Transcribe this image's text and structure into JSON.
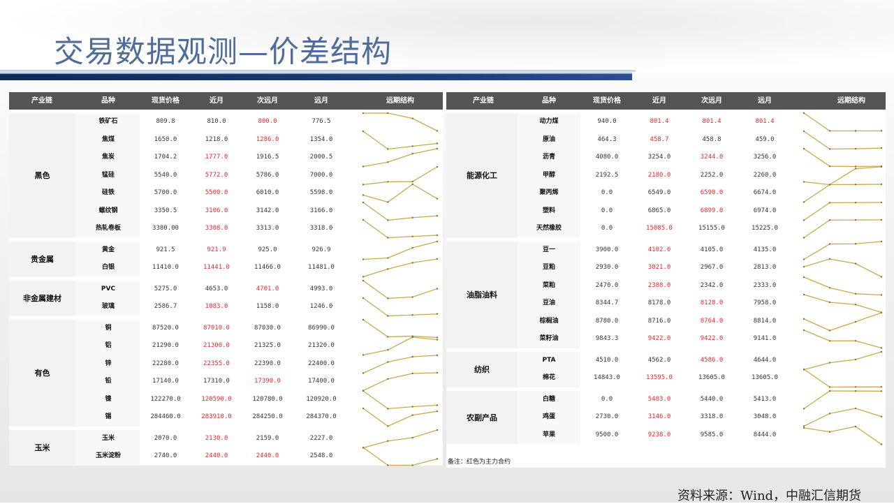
{
  "title": "交易数据观测—价差结构",
  "headers": [
    "产业链",
    "品种",
    "现货价格",
    "近月",
    "次远月",
    "远月",
    "远期结构"
  ],
  "colors": {
    "header_bg": "#555555",
    "main_contract": "#e8282e",
    "sparkline": "#c9a94a",
    "title": "#4f6d99"
  },
  "left": [
    {
      "group": "黑色",
      "rows": [
        [
          "铁矿石",
          "809.8",
          "810.0",
          "800.0",
          "776.5",
          [
            2
          ]
        ],
        [
          "焦煤",
          "1650.0",
          "1218.0",
          "1286.0",
          "1354.0",
          [
            2
          ]
        ],
        [
          "焦炭",
          "1704.2",
          "1777.0",
          "1916.5",
          "2000.5",
          [
            1
          ]
        ],
        [
          "锰硅",
          "5540.0",
          "5772.0",
          "5786.0",
          "7000.0",
          [
            1
          ]
        ],
        [
          "硅铁",
          "5700.0",
          "5500.0",
          "6010.0",
          "5598.0",
          [
            1
          ]
        ],
        [
          "螺纹钢",
          "3350.5",
          "3106.0",
          "3142.0",
          "3166.0",
          [
            1
          ]
        ],
        [
          "热轧卷板",
          "3380.00",
          "3308.0",
          "3313.0",
          "3318.0",
          [
            1
          ]
        ]
      ]
    },
    {
      "group": "贵金属",
      "rows": [
        [
          "黄金",
          "921.5",
          "921.9",
          "925.0",
          "926.9",
          [
            1
          ]
        ],
        [
          "白银",
          "11410.0",
          "11441.0",
          "11466.0",
          "11481.0",
          [
            1
          ]
        ]
      ]
    },
    {
      "group": "非金属建材",
      "rows": [
        [
          "PVC",
          "5275.0",
          "4653.0",
          "4701.0",
          "4993.0",
          [
            2
          ]
        ],
        [
          "玻璃",
          "2586.7",
          "1083.0",
          "1158.0",
          "1246.0",
          [
            1
          ]
        ]
      ]
    },
    {
      "group": "有色",
      "rows": [
        [
          "铜",
          "87520.0",
          "87010.0",
          "87030.0",
          "86990.0",
          [
            1
          ]
        ],
        [
          "铝",
          "21290.0",
          "21300.0",
          "21325.0",
          "21320.0",
          [
            1
          ]
        ],
        [
          "锌",
          "22280.0",
          "22355.0",
          "22390.0",
          "22400.0",
          [
            1
          ]
        ],
        [
          "铅",
          "17140.0",
          "17310.0",
          "17390.0",
          "17400.0",
          [
            2
          ]
        ],
        [
          "镍",
          "122270.0",
          "120590.0",
          "120780.0",
          "120920.0",
          [
            1
          ]
        ],
        [
          "锡",
          "284460.0",
          "283910.0",
          "284250.0",
          "284370.0",
          [
            1
          ]
        ]
      ]
    },
    {
      "group": "玉米",
      "rows": [
        [
          "玉米",
          "2070.0",
          "2130.0",
          "2159.0",
          "2227.0",
          [
            1
          ]
        ],
        [
          "玉米淀粉",
          "2740.0",
          "2440.0",
          "2440.0",
          "2548.0",
          [
            1,
            2
          ]
        ]
      ]
    }
  ],
  "right": [
    {
      "group": "能源化工",
      "rows": [
        [
          "动力煤",
          "940.0",
          "801.4",
          "801.4",
          "801.4",
          [
            1,
            2,
            3
          ]
        ],
        [
          "原油",
          "464.3",
          "458.7",
          "458.8",
          "459.0",
          [
            1
          ]
        ],
        [
          "沥青",
          "4080.0",
          "3254.0",
          "3244.0",
          "3256.0",
          [
            2
          ]
        ],
        [
          "甲醇",
          "2192.5",
          "2180.0",
          "2252.0",
          "2260.0",
          [
            1
          ]
        ],
        [
          "聚丙烯",
          "0.0",
          "6549.0",
          "6590.0",
          "6674.0",
          [
            2
          ]
        ],
        [
          "塑料",
          "0.0",
          "6865.0",
          "6899.0",
          "6974.0",
          [
            2
          ]
        ],
        [
          "天然橡胶",
          "0.0",
          "15085.0",
          "15155.0",
          "15225.0",
          [
            1
          ]
        ]
      ]
    },
    {
      "group": "油脂油料",
      "rows": [
        [
          "豆一",
          "3900.0",
          "4102.0",
          "4105.0",
          "4135.0",
          [
            1
          ]
        ],
        [
          "豆粕",
          "2930.0",
          "3021.0",
          "2967.0",
          "2813.0",
          [
            1
          ]
        ],
        [
          "菜粕",
          "2470.0",
          "2388.0",
          "2342.0",
          "2333.0",
          [
            1
          ]
        ],
        [
          "豆油",
          "8344.7",
          "8178.0",
          "8128.0",
          "7958.0",
          [
            2
          ]
        ],
        [
          "棕榈油",
          "8780.0",
          "8716.0",
          "8764.0",
          "8814.0",
          [
            2
          ]
        ],
        [
          "菜籽油",
          "9843.3",
          "9422.0",
          "9422.0",
          "9141.0",
          [
            1,
            2
          ]
        ]
      ]
    },
    {
      "group": "纺织",
      "rows": [
        [
          "PTA",
          "4510.0",
          "4562.0",
          "4586.0",
          "4644.0",
          [
            2
          ]
        ],
        [
          "棉花",
          "14843.0",
          "13595.0",
          "13605.0",
          "13605.0",
          [
            1
          ]
        ]
      ]
    },
    {
      "group": "农副产品",
      "rows": [
        [
          "白糖",
          "0.0",
          "5483.0",
          "5440.0",
          "5413.0",
          [
            1
          ]
        ],
        [
          "鸡蛋",
          "2730.0",
          "3146.0",
          "3318.0",
          "3048.0",
          [
            1
          ]
        ],
        [
          "苹果",
          "9500.0",
          "9238.0",
          "9585.0",
          "8444.0",
          [
            1
          ]
        ]
      ]
    }
  ],
  "note": "备注：红色为主力合约",
  "source": "资料来源：Wind，中融汇信期货"
}
